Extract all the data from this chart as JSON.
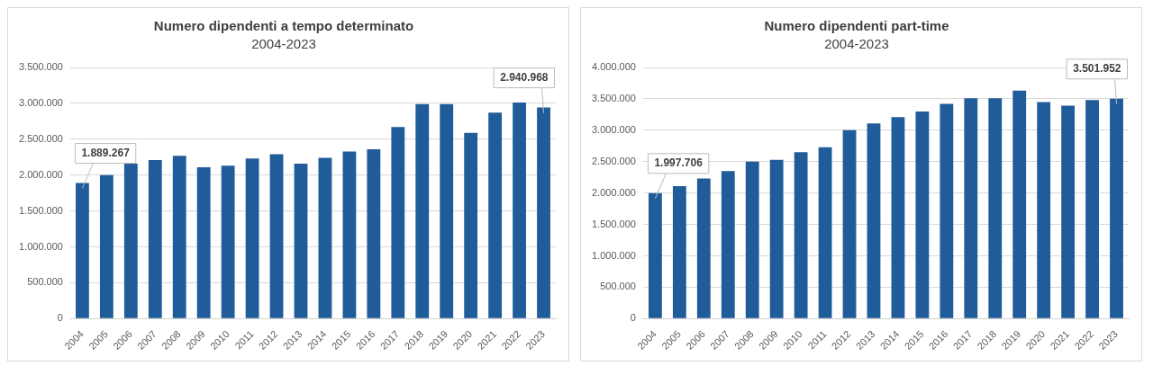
{
  "chart_data": [
    {
      "type": "bar",
      "title": "Numero dipendenti a tempo determinato",
      "subtitle": "2004-2023",
      "categories": [
        "2004",
        "2005",
        "2006",
        "2007",
        "2008",
        "2009",
        "2010",
        "2011",
        "2012",
        "2013",
        "2014",
        "2015",
        "2016",
        "2017",
        "2018",
        "2019",
        "2020",
        "2021",
        "2022",
        "2023"
      ],
      "values": [
        1889267,
        2000000,
        2160000,
        2210000,
        2270000,
        2110000,
        2130000,
        2230000,
        2290000,
        2160000,
        2240000,
        2330000,
        2360000,
        2670000,
        2990000,
        2990000,
        2590000,
        2870000,
        3010000,
        2940968
      ],
      "value_labels": [
        "1.889.267",
        null,
        null,
        null,
        null,
        null,
        null,
        null,
        null,
        null,
        null,
        null,
        null,
        null,
        null,
        null,
        null,
        null,
        null,
        "2.940.968"
      ],
      "color": "#1f5c99",
      "ylim": [
        0,
        3500000
      ],
      "yticks": [
        {
          "value": 0,
          "label": "0"
        },
        {
          "value": 500000,
          "label": "500.000"
        },
        {
          "value": 1000000,
          "label": "1.000.000"
        },
        {
          "value": 1500000,
          "label": "1.500.000"
        },
        {
          "value": 2000000,
          "label": "2.000.000"
        },
        {
          "value": 2500000,
          "label": "2.500.000"
        },
        {
          "value": 3000000,
          "label": "3.000.000"
        },
        {
          "value": 3500000,
          "label": "3.500.000"
        }
      ],
      "grid": "y",
      "legend": false
    },
    {
      "type": "bar",
      "title": "Numero dipendenti part-time",
      "subtitle": "2004-2023",
      "categories": [
        "2004",
        "2005",
        "2006",
        "2007",
        "2008",
        "2009",
        "2010",
        "2011",
        "2012",
        "2013",
        "2014",
        "2015",
        "2016",
        "2017",
        "2018",
        "2019",
        "2020",
        "2021",
        "2022",
        "2023"
      ],
      "values": [
        1997706,
        2110000,
        2230000,
        2350000,
        2500000,
        2530000,
        2650000,
        2730000,
        3000000,
        3110000,
        3210000,
        3300000,
        3420000,
        3510000,
        3510000,
        3630000,
        3450000,
        3390000,
        3480000,
        3501952
      ],
      "value_labels": [
        "1.997.706",
        null,
        null,
        null,
        null,
        null,
        null,
        null,
        null,
        null,
        null,
        null,
        null,
        null,
        null,
        null,
        null,
        null,
        null,
        "3.501.952"
      ],
      "color": "#1f5c99",
      "ylim": [
        0,
        4000000
      ],
      "yticks": [
        {
          "value": 0,
          "label": "0"
        },
        {
          "value": 500000,
          "label": "500.000"
        },
        {
          "value": 1000000,
          "label": "1.000.000"
        },
        {
          "value": 1500000,
          "label": "1.500.000"
        },
        {
          "value": 2000000,
          "label": "2.000.000"
        },
        {
          "value": 2500000,
          "label": "2.500.000"
        },
        {
          "value": 3000000,
          "label": "3.000.000"
        },
        {
          "value": 3500000,
          "label": "3.500.000"
        },
        {
          "value": 4000000,
          "label": "4.000.000"
        }
      ],
      "grid": "y",
      "legend": false
    }
  ]
}
